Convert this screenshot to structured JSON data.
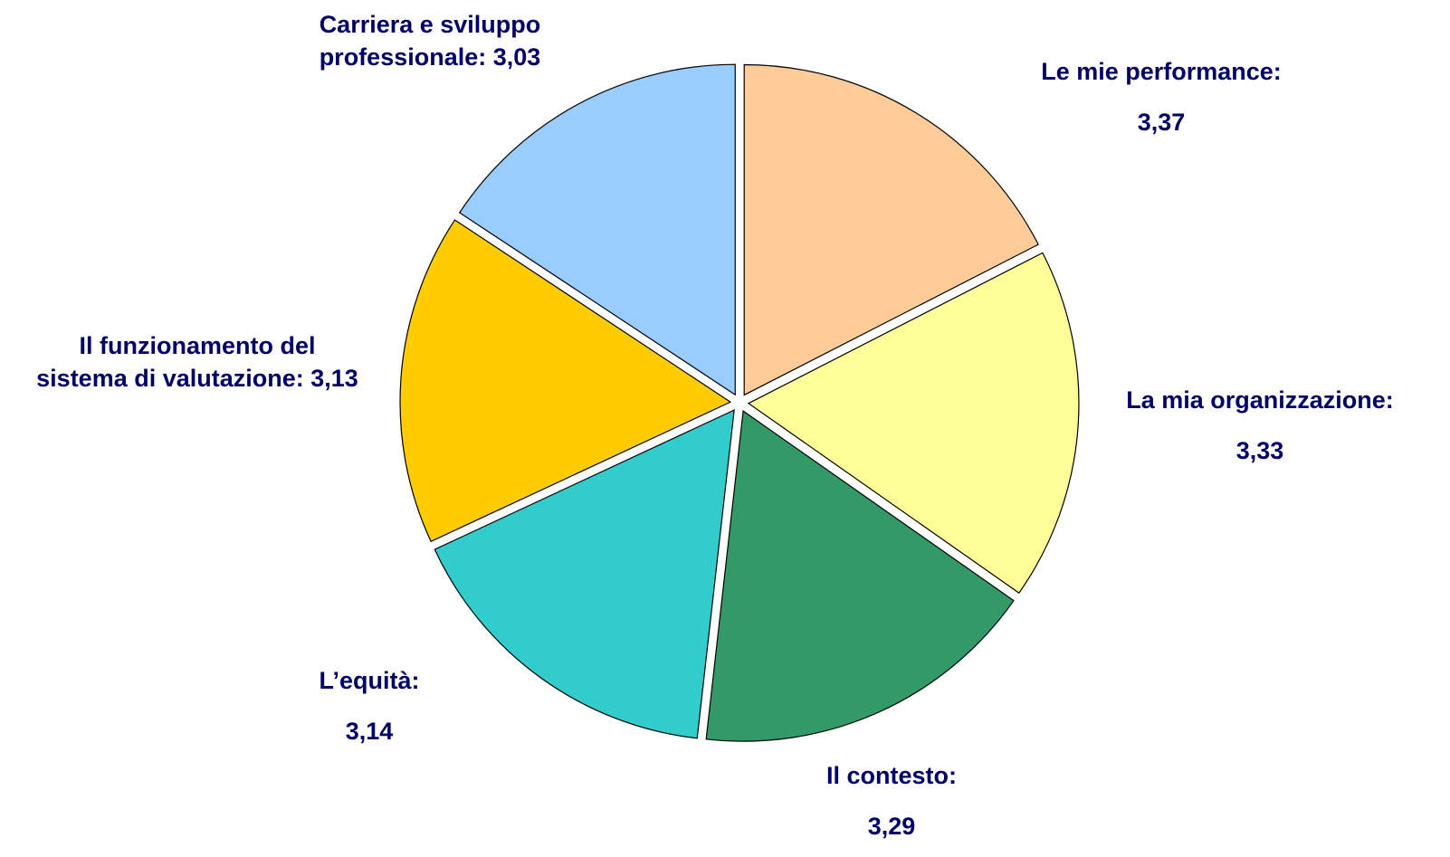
{
  "chart_data": {
    "type": "pie",
    "categories": [
      "Le mie performance:",
      "La mia organizzazione:",
      "Il contesto:",
      "L’equità:",
      "Il funzionamento del sistema di valutazione:",
      "Carriera e sviluppo professionale:"
    ],
    "values": [
      3.37,
      3.33,
      3.29,
      3.14,
      3.13,
      3.03
    ],
    "value_labels": [
      "3,37",
      "3,33",
      "3,29",
      "3,14",
      "3,13",
      "3,03"
    ],
    "colors": [
      "#FFCC99",
      "#FFFF99",
      "#339966",
      "#33CCCC",
      "#FFCC00",
      "#99CCFF"
    ]
  }
}
